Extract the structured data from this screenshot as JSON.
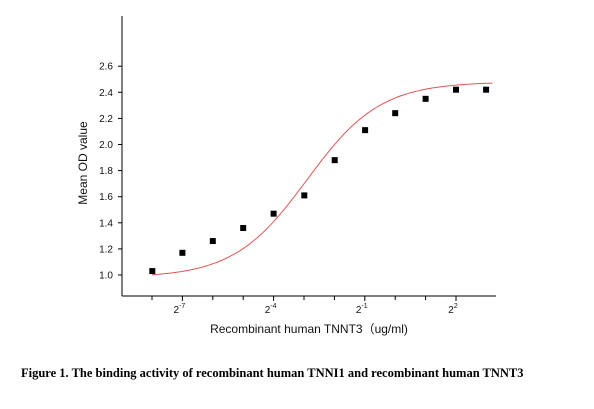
{
  "chart_data": {
    "type": "scatter",
    "xlabel": "Recombinant human TNNT3（ug/ml)",
    "ylabel": "Mean OD value",
    "x_scale": "log2",
    "xlim": [
      -8.6,
      2.2
    ],
    "ylim": [
      0.92,
      2.6
    ],
    "y_ticks": [
      1.0,
      1.2,
      1.4,
      1.6,
      1.8,
      2.0,
      2.2,
      2.4,
      2.6
    ],
    "y_tick_labels": [
      "1.0",
      "1.2",
      "1.4",
      "1.6",
      "1.8",
      "2.0",
      "2.2",
      "2.4",
      "2.6"
    ],
    "x_ticks_major": [
      {
        "base": "2",
        "exp": "-7",
        "log2": -7
      },
      {
        "base": "2",
        "exp": "-4",
        "log2": -4
      },
      {
        "base": "2",
        "exp": "-1",
        "log2": -1
      },
      {
        "base": "2",
        "exp": "2",
        "log2": 2
      }
    ],
    "x_ticks_minor_log2": [
      -8,
      -6,
      -5,
      -3,
      -2,
      0,
      1
    ],
    "series": [
      {
        "marker": "square",
        "color": "#000000",
        "points": [
          {
            "x": -7.99,
            "y": 1.03
          },
          {
            "x": -7.0,
            "y": 1.17
          },
          {
            "x": -6.0,
            "y": 1.26
          },
          {
            "x": -5.0,
            "y": 1.36
          },
          {
            "x": -4.0,
            "y": 1.47
          },
          {
            "x": -2.99,
            "y": 1.61
          },
          {
            "x": -1.99,
            "y": 1.88
          },
          {
            "x": -0.99,
            "y": 2.11
          },
          {
            "x": 0.0,
            "y": 2.24
          },
          {
            "x": 1.0,
            "y": 2.35
          },
          {
            "x": 2.0,
            "y": 2.42
          },
          {
            "x": 2.99,
            "y": 2.42
          }
        ]
      }
    ],
    "fit": {
      "model": "4PL",
      "color": "#e05555",
      "bottom": 0.98,
      "top": 2.48,
      "ec50_log2": -2.9,
      "hill": 1.2,
      "x_range_log2": [
        -8.0,
        3.2
      ]
    },
    "grid": false,
    "legend": "none"
  },
  "caption": {
    "text": "Figure 1. The binding activity of recombinant human TNNI1 and recombinant human TNNT3"
  }
}
